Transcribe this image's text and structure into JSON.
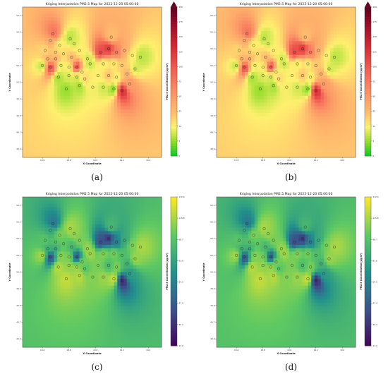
{
  "chart_data": [
    {
      "type": "heatmap",
      "panel": "a",
      "caption": "(a)",
      "title": "Kriging Interpolation PM2.5 Map for 2022-12-20 05:00:00",
      "xlabel": "X Coordinate",
      "ylabel": "Y Coordinate",
      "colorbar_label": "PM2.5 Concentration (µg/m³)",
      "colormap": "green-yellow-orange-red-darkred",
      "xticks": [
        "18.6",
        "18.8",
        "19.0",
        "19.2",
        "19.4"
      ],
      "yticks": [
        "50.4",
        "50.3",
        "50.2",
        "50.1",
        "50.0",
        "49.9",
        "49.8",
        "49.7",
        "49.6"
      ],
      "colorbar_ticks": [
        "0",
        "5",
        "10",
        "25",
        "50",
        "75",
        "100",
        "125",
        "150",
        "175",
        "200"
      ]
    },
    {
      "type": "heatmap",
      "panel": "b",
      "caption": "(b)",
      "title": "Kriging Interpolation PM2.5 Map for 2022-12-20 05:00:00",
      "xlabel": "X Coordinate",
      "ylabel": "Y Coordinate",
      "colorbar_label": "PM2.5 Concentration (µg/m³)",
      "colormap": "green-yellow-orange-red-darkred",
      "xticks": [
        "18.6",
        "18.8",
        "19.0",
        "19.2",
        "19.4"
      ],
      "yticks": [
        "50.4",
        "50.3",
        "50.2",
        "50.1",
        "50.0",
        "49.9",
        "49.8",
        "49.7",
        "49.6"
      ],
      "colorbar_ticks": [
        "0",
        "5",
        "10",
        "25",
        "50",
        "75",
        "100",
        "125",
        "150",
        "175",
        "200"
      ]
    },
    {
      "type": "heatmap",
      "panel": "c",
      "caption": "(c)",
      "title": "Kriging Interpolation PM2.5 Map for 2022-12-20 05:00:00",
      "xlabel": "X Coordinate",
      "ylabel": "Y Coordinate",
      "colorbar_label": "PM2.5 Concentration (µg/m³)",
      "colormap": "viridis",
      "xticks": [
        "18.6",
        "18.8",
        "19.0",
        "19.2",
        "19.4"
      ],
      "yticks": [
        "50.4",
        "50.3",
        "50.2",
        "50.1",
        "50.0",
        "49.9",
        "49.8",
        "49.7",
        "49.6"
      ],
      "colorbar_ticks": [
        "13.2",
        "30.3",
        "47.4",
        "64.5",
        "81.6",
        "98.7",
        "115.8",
        "132.9"
      ]
    },
    {
      "type": "heatmap",
      "panel": "d",
      "caption": "(d)",
      "title": "Kriging Interpolation PM2.5 Map for 2022-12-20 05:00:00",
      "xlabel": "X Coordinate",
      "ylabel": "Y Coordinate",
      "colorbar_label": "PM2.5 Concentration (µg/m³)",
      "colormap": "viridis",
      "xticks": [
        "18.6",
        "18.8",
        "19.0",
        "19.2",
        "19.4"
      ],
      "yticks": [
        "50.4",
        "50.3",
        "50.2",
        "50.1",
        "50.0",
        "49.9",
        "49.8",
        "49.7",
        "49.6"
      ],
      "colorbar_ticks": [
        "13.2",
        "30.3",
        "47.4",
        "64.5",
        "81.6",
        "98.7",
        "115.8",
        "132.9"
      ]
    }
  ],
  "stations": [
    [
      18.68,
      50.29,
      95
    ],
    [
      18.66,
      50.25,
      60
    ],
    [
      18.73,
      50.22,
      28
    ],
    [
      18.81,
      50.26,
      18
    ],
    [
      18.84,
      50.23,
      24
    ],
    [
      18.62,
      50.19,
      40
    ],
    [
      18.7,
      50.18,
      42
    ],
    [
      18.76,
      50.17,
      38
    ],
    [
      18.64,
      50.14,
      55
    ],
    [
      18.7,
      50.14,
      60
    ],
    [
      18.82,
      50.15,
      52
    ],
    [
      18.88,
      50.19,
      30
    ],
    [
      18.94,
      50.14,
      22
    ],
    [
      18.6,
      50.1,
      18
    ],
    [
      18.66,
      50.09,
      120
    ],
    [
      18.74,
      50.1,
      25
    ],
    [
      18.8,
      50.09,
      28
    ],
    [
      18.86,
      50.09,
      120
    ],
    [
      18.9,
      50.06,
      30
    ],
    [
      18.96,
      50.11,
      20
    ],
    [
      18.72,
      50.03,
      14
    ],
    [
      18.8,
      50.04,
      22
    ],
    [
      18.86,
      50.03,
      20
    ],
    [
      18.92,
      50.02,
      40
    ],
    [
      18.78,
      49.96,
      12
    ],
    [
      18.88,
      49.98,
      14
    ],
    [
      18.98,
      49.97,
      28
    ],
    [
      19.04,
      50.18,
      120
    ],
    [
      19.1,
      50.2,
      130
    ],
    [
      19.16,
      50.18,
      90
    ],
    [
      19.22,
      50.19,
      60
    ],
    [
      19.28,
      50.16,
      30
    ],
    [
      19.06,
      50.11,
      26
    ],
    [
      19.14,
      50.11,
      30
    ],
    [
      19.2,
      50.1,
      45
    ],
    [
      19.3,
      50.08,
      22
    ],
    [
      19.34,
      50.15,
      18
    ],
    [
      19.02,
      50.04,
      30
    ],
    [
      19.1,
      50.04,
      48
    ],
    [
      19.16,
      50.03,
      28
    ],
    [
      19.24,
      50.05,
      55
    ],
    [
      19.06,
      49.97,
      22
    ],
    [
      19.14,
      49.96,
      8
    ],
    [
      19.2,
      49.95,
      140
    ],
    [
      19.26,
      49.99,
      70
    ],
    [
      19.12,
      50.27,
      50
    ]
  ]
}
